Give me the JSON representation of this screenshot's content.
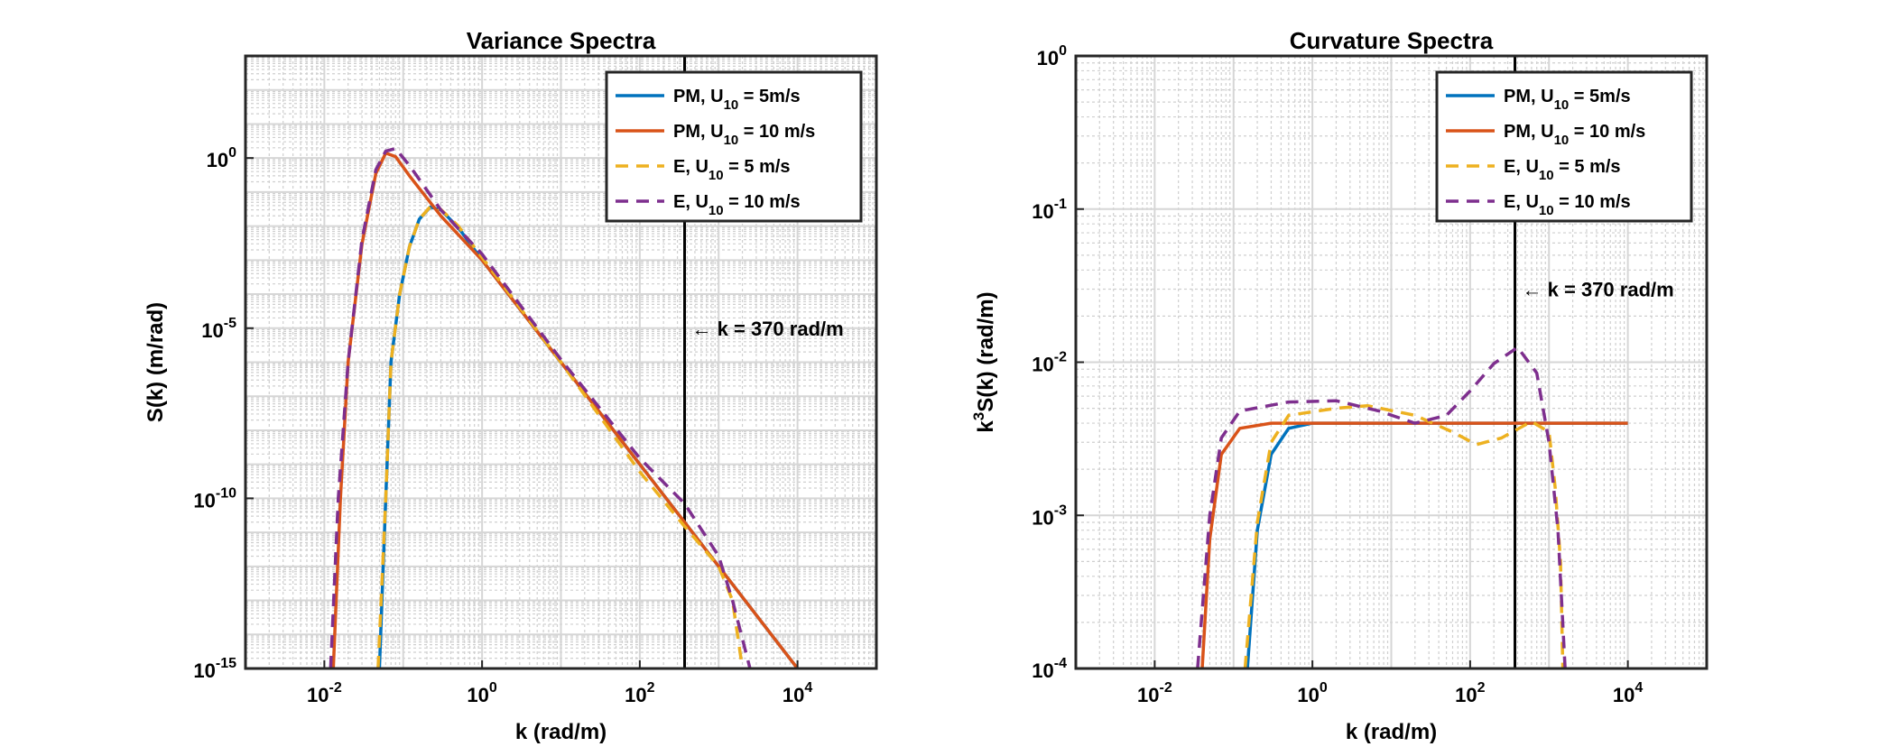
{
  "chart_data": [
    {
      "type": "line",
      "title": "Variance Spectra",
      "xlabel": "k (rad/m)",
      "ylabel": "S(k) (m/rad)",
      "xscale": "log",
      "yscale": "log",
      "xlim": [
        0.001,
        100000
      ],
      "ylim": [
        1e-15,
        1000
      ],
      "xticks": [
        0.01,
        1,
        100,
        10000
      ],
      "xticklabels": [
        {
          "base": "10",
          "exp": "-2"
        },
        {
          "base": "10",
          "exp": "0"
        },
        {
          "base": "10",
          "exp": "2"
        },
        {
          "base": "10",
          "exp": "4"
        }
      ],
      "yticks": [
        1e-15,
        1e-10,
        1e-05,
        1
      ],
      "yticklabels": [
        {
          "base": "10",
          "exp": "-15"
        },
        {
          "base": "10",
          "exp": "-10"
        },
        {
          "base": "10",
          "exp": "-5"
        },
        {
          "base": "10",
          "exp": "0"
        }
      ],
      "grid": true,
      "minor_grid": true,
      "legend_position": "top-right",
      "vline": {
        "x": 370,
        "label": "k = 370 rad/m",
        "arrow": "←",
        "label_y": 1e-05
      },
      "series": [
        {
          "name": "PM, U₁₀ = 5m/s",
          "name_parts": {
            "pre": "PM,  U",
            "sub": "10",
            "post": " = 5m/s"
          },
          "color": "#0072BD",
          "dash": "solid",
          "points": [
            [
              0.05,
              1e-15
            ],
            [
              0.06,
              1e-10
            ],
            [
              0.07,
              1e-06
            ],
            [
              0.09,
              0.0001
            ],
            [
              0.12,
              0.0025
            ],
            [
              0.16,
              0.016
            ],
            [
              0.22,
              0.036
            ],
            [
              0.3,
              0.03
            ],
            [
              0.5,
              0.009
            ],
            [
              1,
              0.001
            ],
            [
              10,
              1e-06
            ],
            [
              100,
              1e-09
            ],
            [
              370,
              2e-11
            ],
            [
              1000,
              1e-12
            ],
            [
              10000,
              1e-15
            ]
          ]
        },
        {
          "name": "PM, U₁₀ = 10 m/s",
          "name_parts": {
            "pre": "PM,  U",
            "sub": "10",
            "post": " = 10 m/s"
          },
          "color": "#D95319",
          "dash": "solid",
          "points": [
            [
              0.013,
              1e-15
            ],
            [
              0.016,
              1e-10
            ],
            [
              0.02,
              1e-06
            ],
            [
              0.03,
              0.003
            ],
            [
              0.045,
              0.35
            ],
            [
              0.06,
              1.4
            ],
            [
              0.08,
              1.1
            ],
            [
              0.12,
              0.3
            ],
            [
              0.3,
              0.02
            ],
            [
              1,
              0.001
            ],
            [
              10,
              1e-06
            ],
            [
              100,
              1e-09
            ],
            [
              370,
              2e-11
            ],
            [
              1000,
              1e-12
            ],
            [
              10000,
              1e-15
            ]
          ]
        },
        {
          "name": "E, U₁₀ = 5 m/s",
          "name_parts": {
            "pre": "E,  U",
            "sub": "10",
            "post": " = 5 m/s"
          },
          "color": "#EDB120",
          "dash": "dashed",
          "points": [
            [
              0.048,
              1e-15
            ],
            [
              0.06,
              1e-10
            ],
            [
              0.07,
              1e-06
            ],
            [
              0.09,
              0.0001
            ],
            [
              0.12,
              0.0025
            ],
            [
              0.16,
              0.016
            ],
            [
              0.22,
              0.037
            ],
            [
              0.3,
              0.031
            ],
            [
              0.5,
              0.01
            ],
            [
              1,
              0.0012
            ],
            [
              10,
              1e-06
            ],
            [
              100,
              6e-10
            ],
            [
              370,
              1.5e-11
            ],
            [
              1000,
              1e-12
            ],
            [
              1500,
              1e-13
            ],
            [
              2000,
              1e-15
            ]
          ]
        },
        {
          "name": "E, U₁₀ = 10 m/s",
          "name_parts": {
            "pre": "E,  U",
            "sub": "10",
            "post": " = 10 m/s"
          },
          "color": "#7E2F8E",
          "dash": "dashed",
          "points": [
            [
              0.012,
              1e-15
            ],
            [
              0.015,
              1e-10
            ],
            [
              0.02,
              1e-06
            ],
            [
              0.03,
              0.004
            ],
            [
              0.045,
              0.45
            ],
            [
              0.06,
              1.6
            ],
            [
              0.08,
              1.9
            ],
            [
              0.12,
              0.6
            ],
            [
              0.3,
              0.03
            ],
            [
              1,
              0.0015
            ],
            [
              10,
              1.2e-06
            ],
            [
              100,
              1.5e-09
            ],
            [
              370,
              7e-11
            ],
            [
              1000,
              2e-12
            ],
            [
              1500,
              1e-13
            ],
            [
              2500,
              1e-15
            ]
          ]
        }
      ]
    },
    {
      "type": "line",
      "title": "Curvature Spectra",
      "xlabel": "k (rad/m)",
      "ylabel_parts": {
        "pre": "k",
        "sup": "3",
        "post": "S(k) (rad/m)"
      },
      "xscale": "log",
      "yscale": "log",
      "xlim": [
        0.001,
        100000
      ],
      "ylim": [
        0.0001,
        1
      ],
      "xticks": [
        0.01,
        1,
        100,
        10000
      ],
      "xticklabels": [
        {
          "base": "10",
          "exp": "-2"
        },
        {
          "base": "10",
          "exp": "0"
        },
        {
          "base": "10",
          "exp": "2"
        },
        {
          "base": "10",
          "exp": "4"
        }
      ],
      "yticks": [
        0.0001,
        0.001,
        0.01,
        0.1,
        1
      ],
      "yticklabels": [
        {
          "base": "10",
          "exp": "-4"
        },
        {
          "base": "10",
          "exp": "-3"
        },
        {
          "base": "10",
          "exp": "-2"
        },
        {
          "base": "10",
          "exp": "-1"
        },
        {
          "base": "10",
          "exp": "0"
        }
      ],
      "grid": true,
      "minor_grid": true,
      "legend_position": "top-right",
      "vline": {
        "x": 370,
        "label": "k = 370 rad/m",
        "arrow": "←",
        "label_y": 0.03
      },
      "series": [
        {
          "name": "PM, U₁₀ = 5m/s",
          "name_parts": {
            "pre": "PM,  U",
            "sub": "10",
            "post": " = 5m/s"
          },
          "color": "#0072BD",
          "dash": "solid",
          "points": [
            [
              0.15,
              0.0001
            ],
            [
              0.2,
              0.0008
            ],
            [
              0.3,
              0.0025
            ],
            [
              0.5,
              0.0037
            ],
            [
              1,
              0.004
            ],
            [
              10,
              0.004
            ],
            [
              10000,
              0.004
            ]
          ]
        },
        {
          "name": "PM, U₁₀ = 10 m/s",
          "name_parts": {
            "pre": "PM,  U",
            "sub": "10",
            "post": " = 10 m/s"
          },
          "color": "#D95319",
          "dash": "solid",
          "points": [
            [
              0.04,
              0.0001
            ],
            [
              0.05,
              0.0007
            ],
            [
              0.07,
              0.0025
            ],
            [
              0.12,
              0.0037
            ],
            [
              0.3,
              0.004
            ],
            [
              1,
              0.004
            ],
            [
              10000,
              0.004
            ]
          ]
        },
        {
          "name": "E, U₁₀ = 5 m/s",
          "name_parts": {
            "pre": "E,  U",
            "sub": "10",
            "post": " = 5 m/s"
          },
          "color": "#EDB120",
          "dash": "dashed",
          "points": [
            [
              0.14,
              0.0001
            ],
            [
              0.2,
              0.0009
            ],
            [
              0.3,
              0.003
            ],
            [
              0.5,
              0.0045
            ],
            [
              2,
              0.005
            ],
            [
              5,
              0.0052
            ],
            [
              20,
              0.0045
            ],
            [
              60,
              0.0035
            ],
            [
              120,
              0.0029
            ],
            [
              250,
              0.0032
            ],
            [
              600,
              0.0041
            ],
            [
              1000,
              0.0035
            ],
            [
              1200,
              0.0015
            ],
            [
              1400,
              0.0005
            ],
            [
              1500,
              0.0001
            ]
          ]
        },
        {
          "name": "E, U₁₀ = 10 m/s",
          "name_parts": {
            "pre": "E,  U",
            "sub": "10",
            "post": " = 10 m/s"
          },
          "color": "#7E2F8E",
          "dash": "dashed",
          "points": [
            [
              0.035,
              0.0001
            ],
            [
              0.05,
              0.001
            ],
            [
              0.07,
              0.0032
            ],
            [
              0.12,
              0.0048
            ],
            [
              0.5,
              0.0055
            ],
            [
              2,
              0.0056
            ],
            [
              7,
              0.0048
            ],
            [
              20,
              0.004
            ],
            [
              50,
              0.0045
            ],
            [
              100,
              0.0065
            ],
            [
              200,
              0.0098
            ],
            [
              400,
              0.0125
            ],
            [
              700,
              0.0085
            ],
            [
              1000,
              0.003
            ],
            [
              1300,
              0.0008
            ],
            [
              1600,
              0.0001
            ]
          ]
        }
      ]
    }
  ]
}
